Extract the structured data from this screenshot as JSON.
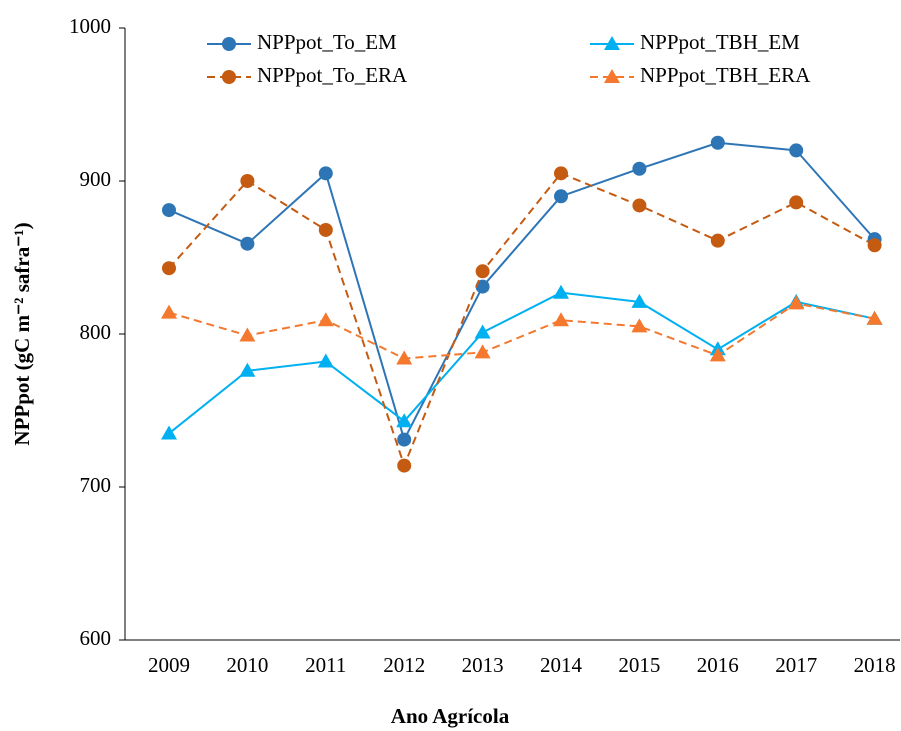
{
  "chart_data": {
    "type": "line",
    "xlabel": "Ano Agrícola",
    "ylabel": "NPPpot (gC m⁻² safra⁻¹)",
    "categories": [
      "2009",
      "2010",
      "2011",
      "2012",
      "2013",
      "2014",
      "2015",
      "2016",
      "2017",
      "2018"
    ],
    "series": [
      {
        "name": "NPPpot_To_EM",
        "color": "#2E75B6",
        "marker": "circle",
        "dashed": false,
        "values": [
          881,
          859,
          905,
          731,
          831,
          890,
          908,
          925,
          920,
          862
        ]
      },
      {
        "name": "NPPpot_TBH_EM",
        "color": "#00B0F0",
        "marker": "triangle",
        "dashed": false,
        "values": [
          735,
          776,
          782,
          743,
          801,
          827,
          821,
          790,
          821,
          810
        ]
      },
      {
        "name": "NPPpot_To_ERA",
        "color": "#C55A11",
        "marker": "circle",
        "dashed": true,
        "values": [
          843,
          900,
          868,
          714,
          841,
          905,
          884,
          861,
          886,
          858
        ]
      },
      {
        "name": "NPPpot_TBH_ERA",
        "color": "#F4782E",
        "marker": "triangle",
        "dashed": true,
        "values": [
          814,
          799,
          809,
          784,
          788,
          809,
          805,
          786,
          820,
          810
        ]
      }
    ],
    "ylim": [
      600,
      1000
    ],
    "yticks": [
      600,
      700,
      800,
      900,
      1000
    ],
    "grid": false
  }
}
